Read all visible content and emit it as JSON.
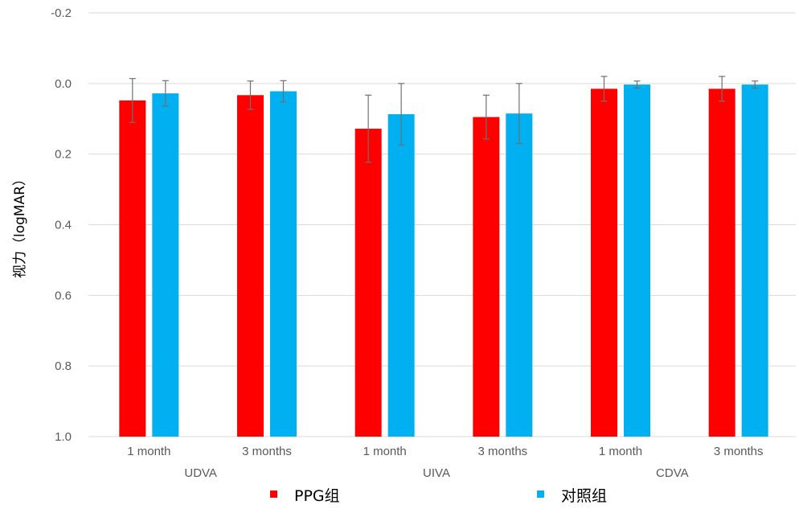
{
  "chart_data": {
    "type": "bar",
    "ylabel": "视力（logMAR）",
    "y_axis_inverted": true,
    "ylim": [
      -0.2,
      1.0
    ],
    "yticks": [
      -0.2,
      0.0,
      0.2,
      0.4,
      0.6,
      0.8,
      1.0
    ],
    "ytick_labels": [
      "-0.2",
      "0.0",
      "0.2",
      "0.4",
      "0.6",
      "0.8",
      "1.0"
    ],
    "grid": true,
    "legend_position": "bottom",
    "groups": [
      {
        "label": "UDVA",
        "categories": [
          "1 month",
          "3 months"
        ]
      },
      {
        "label": "UIVA",
        "categories": [
          "1 month",
          "3 months"
        ]
      },
      {
        "label": "CDVA",
        "categories": [
          "1 month",
          "3 months"
        ]
      }
    ],
    "series": [
      {
        "name": "PPG组",
        "color": "#ff0000",
        "values": [
          0.048,
          0.033,
          0.128,
          0.095,
          0.015,
          0.015
        ],
        "error": [
          0.062,
          0.04,
          0.095,
          0.062,
          0.035,
          0.035
        ]
      },
      {
        "name": "对照组",
        "color": "#00b0f0",
        "values": [
          0.028,
          0.022,
          0.087,
          0.085,
          0.003,
          0.003
        ],
        "error": [
          0.036,
          0.03,
          0.087,
          0.085,
          0.01,
          0.01
        ]
      }
    ]
  }
}
